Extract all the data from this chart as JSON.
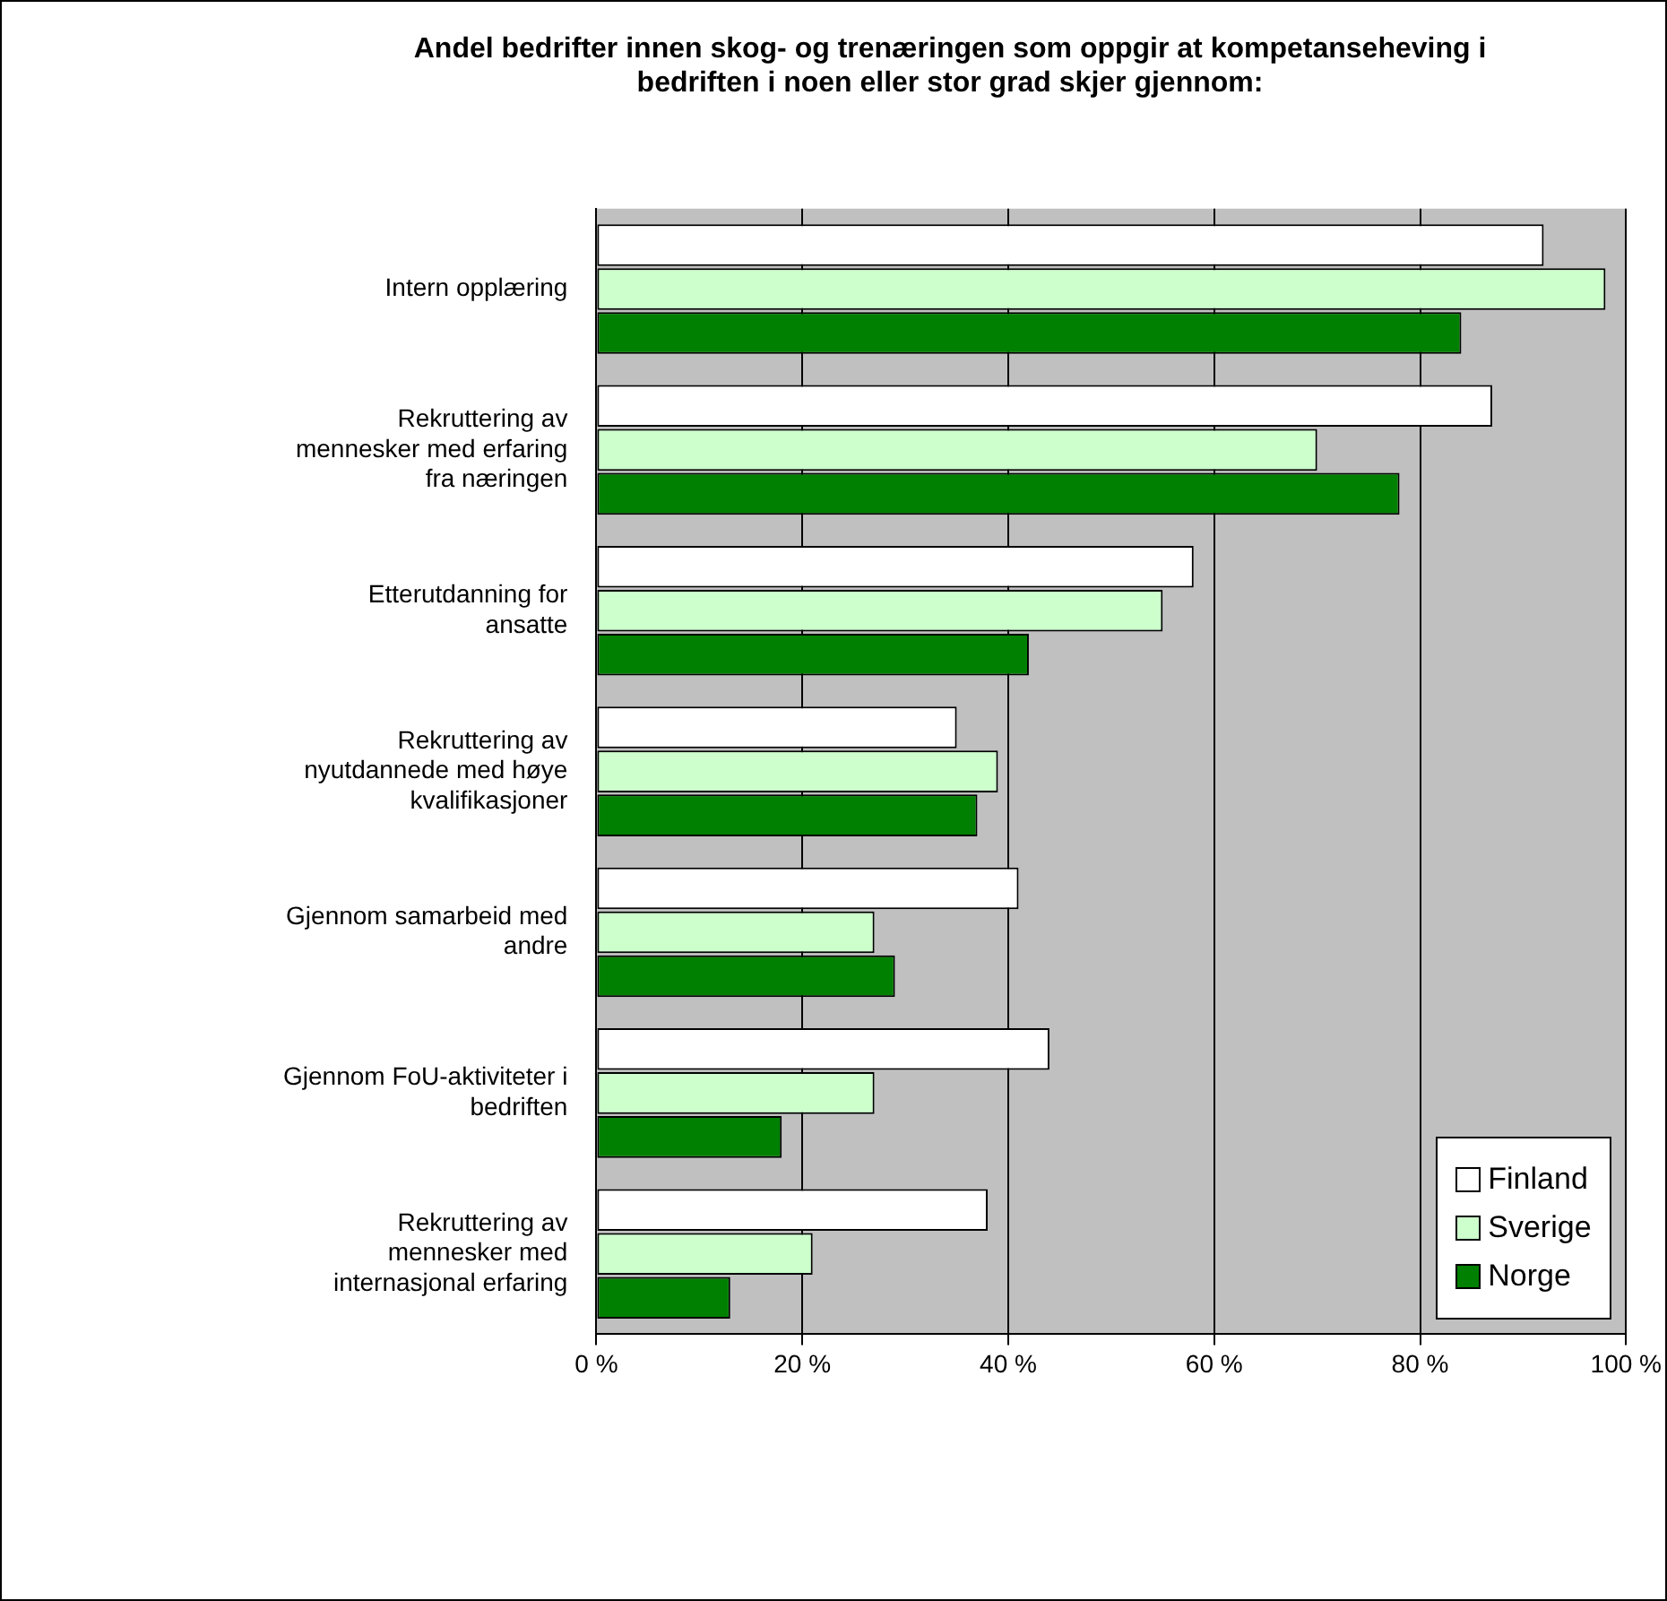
{
  "chart_data": {
    "type": "bar",
    "orientation": "horizontal",
    "title": "Andel bedrifter innen skog- og trenæringen som oppgir at kompetanseheving i bedriften i noen eller stor grad skjer gjennom:",
    "categories": [
      "Intern opplæring",
      "Rekruttering av mennesker med erfaring fra næringen",
      "Etterutdanning for ansatte",
      "Rekruttering av nyutdannede med høye kvalifikasjoner",
      "Gjennom samarbeid med andre",
      "Gjennom FoU-aktiviteter i bedriften",
      "Rekruttering av mennesker med internasjonal erfaring"
    ],
    "series": [
      {
        "name": "Finland",
        "color": "#ffffff",
        "values": [
          92,
          87,
          58,
          35,
          41,
          44,
          38
        ]
      },
      {
        "name": "Sverige",
        "color": "#ccffcc",
        "values": [
          98,
          70,
          55,
          39,
          27,
          27,
          21
        ]
      },
      {
        "name": "Norge",
        "color": "#008000",
        "values": [
          84,
          78,
          42,
          37,
          29,
          18,
          13
        ]
      }
    ],
    "xlim": [
      0,
      100
    ],
    "xticks": [
      {
        "value": 0,
        "label": "0 %"
      },
      {
        "value": 20,
        "label": "20 %"
      },
      {
        "value": 40,
        "label": "40 %"
      },
      {
        "value": 60,
        "label": "60 %"
      },
      {
        "value": 80,
        "label": "80 %"
      },
      {
        "value": 100,
        "label": "100 %"
      }
    ],
    "grid": "x",
    "legend": "bottom right"
  }
}
